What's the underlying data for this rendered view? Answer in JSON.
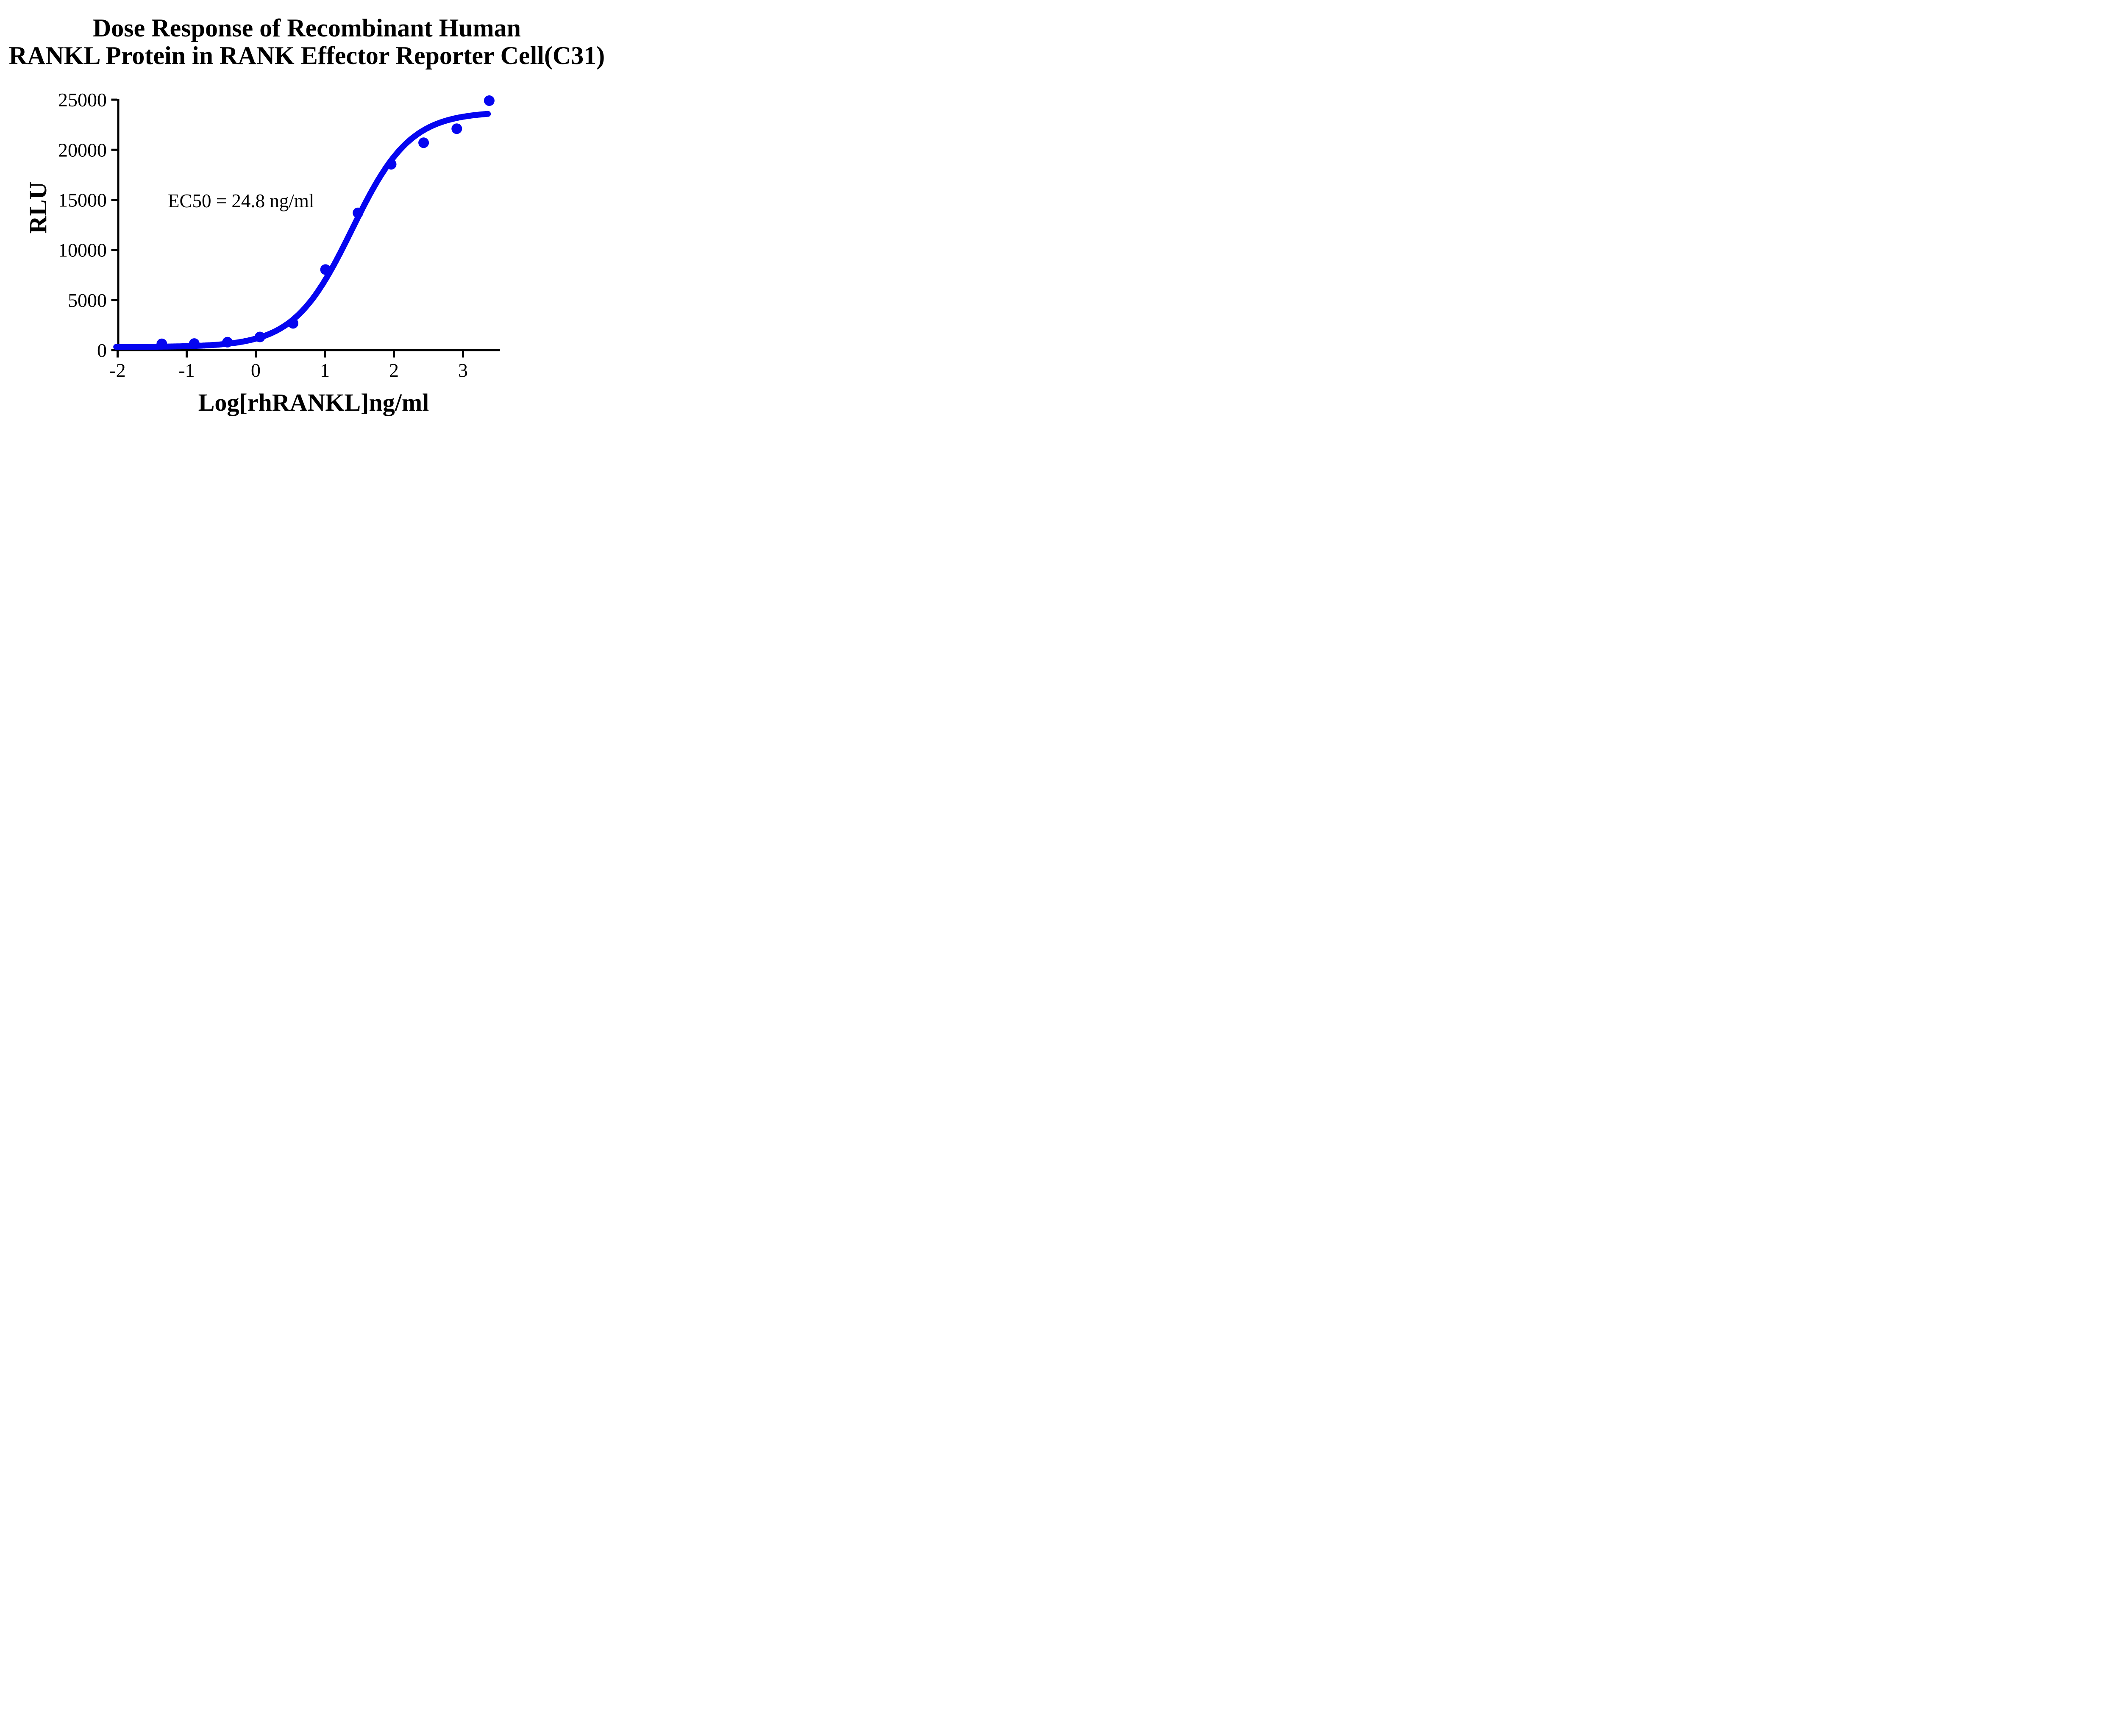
{
  "title": {
    "line1": "Dose Response of Recombinant Human",
    "line2": "RANKL Protein in RANK Effector Reporter Cell(C31)"
  },
  "annotation": {
    "ec50": "EC50 = 24.8 ng/ml"
  },
  "axes": {
    "y": {
      "label": "RLU",
      "tick_values": [
        0,
        5000,
        10000,
        15000,
        20000,
        25000
      ],
      "tick_labels": [
        "0",
        "5000",
        "10000",
        "15000",
        "20000",
        "25000"
      ]
    },
    "x": {
      "label": "Log[rhRANKL]ng/ml",
      "tick_values": [
        -2,
        -1,
        0,
        1,
        2,
        3
      ],
      "tick_labels": [
        "-2",
        "-1",
        "0",
        "1",
        "2",
        "3"
      ]
    }
  },
  "chart_data": {
    "type": "scatter",
    "title": "Dose Response of Recombinant Human RANKL Protein in RANK Effector Reporter Cell(C31)",
    "xlabel": "Log[rhRANKL]ng/ml",
    "ylabel": "RLU",
    "xlim": [
      -2,
      3.55
    ],
    "ylim": [
      0,
      25000
    ],
    "grid": false,
    "legend": "none",
    "x_axis_note": "x values are log10 of rhRANKL concentration in ng/ml",
    "ec50_ng_ml": 24.8,
    "series": [
      {
        "name": "rhRANKL",
        "x": [
          -1.36,
          -0.89,
          -0.41,
          0.06,
          0.54,
          1.01,
          1.48,
          1.96,
          2.43,
          2.91,
          3.38
        ],
        "y": [
          620,
          650,
          790,
          1310,
          2670,
          8040,
          13700,
          18550,
          20700,
          22100,
          24900
        ]
      }
    ],
    "fit_curve": {
      "model": "4PL",
      "bottom": 310,
      "top": 23800,
      "log_ec50": 1.394,
      "hill": 1.03,
      "x_range": [
        -2.02,
        3.37
      ]
    },
    "annotations": [
      {
        "text": "EC50 = 24.8 ng/ml",
        "x": -0.05,
        "y": 14000
      }
    ],
    "colors": {
      "curve": "#0505f0",
      "points": "#0505f0",
      "axis": "#000000",
      "background": "#ffffff"
    }
  }
}
